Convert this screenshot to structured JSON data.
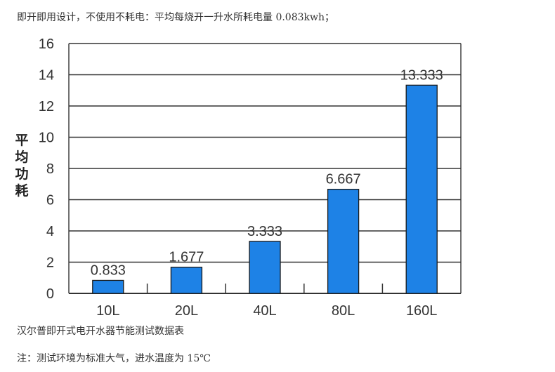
{
  "header_text": "即开即用设计，不使用不耗电：平均每烧开一升水所耗电量 0.083kwh；",
  "caption": "汉尔普即开式电开水器节能测试数据表",
  "note": "注：测试环境为标准大气，进水温度为 15℃",
  "chart_data": {
    "type": "bar",
    "categories": [
      "10L",
      "20L",
      "40L",
      "80L",
      "160L"
    ],
    "values": [
      0.833,
      1.677,
      3.333,
      6.667,
      13.333
    ],
    "data_labels": [
      "0.833",
      "1.677",
      "3.333",
      "6.667",
      "13.333"
    ],
    "ylabel": "平均功耗",
    "xlabel": "",
    "ylim": [
      0,
      16
    ],
    "yticks": [
      0,
      2,
      4,
      6,
      8,
      10,
      12,
      14,
      16
    ],
    "grid": true,
    "bar_color": "#1e82e6",
    "bar_edge_color": "#1a1a1a"
  }
}
